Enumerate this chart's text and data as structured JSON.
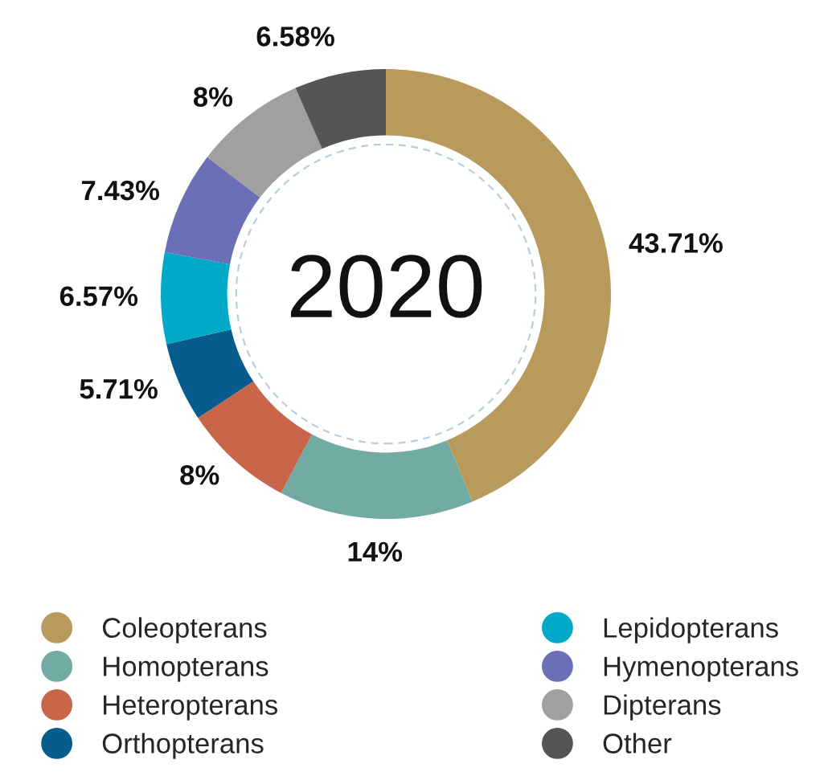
{
  "chart_data": {
    "type": "donut",
    "title": "2020",
    "categories": [
      "Coleopterans",
      "Homopterans",
      "Heteropterans",
      "Orthopterans",
      "Lepidopterans",
      "Hymenopterans",
      "Dipterans",
      "Other"
    ],
    "values": [
      43.71,
      14,
      8,
      5.71,
      6.57,
      7.43,
      8,
      6.58
    ],
    "value_labels": [
      "43.71%",
      "14%",
      "8%",
      "5.71%",
      "6.57%",
      "7.43%",
      "8%",
      "6.58%"
    ],
    "colors": [
      "#b89a5c",
      "#72aba4",
      "#c9664a",
      "#065c8c",
      "#00a9c7",
      "#6a6fb6",
      "#a0a0a0",
      "#555555"
    ],
    "legend": "bottom"
  }
}
